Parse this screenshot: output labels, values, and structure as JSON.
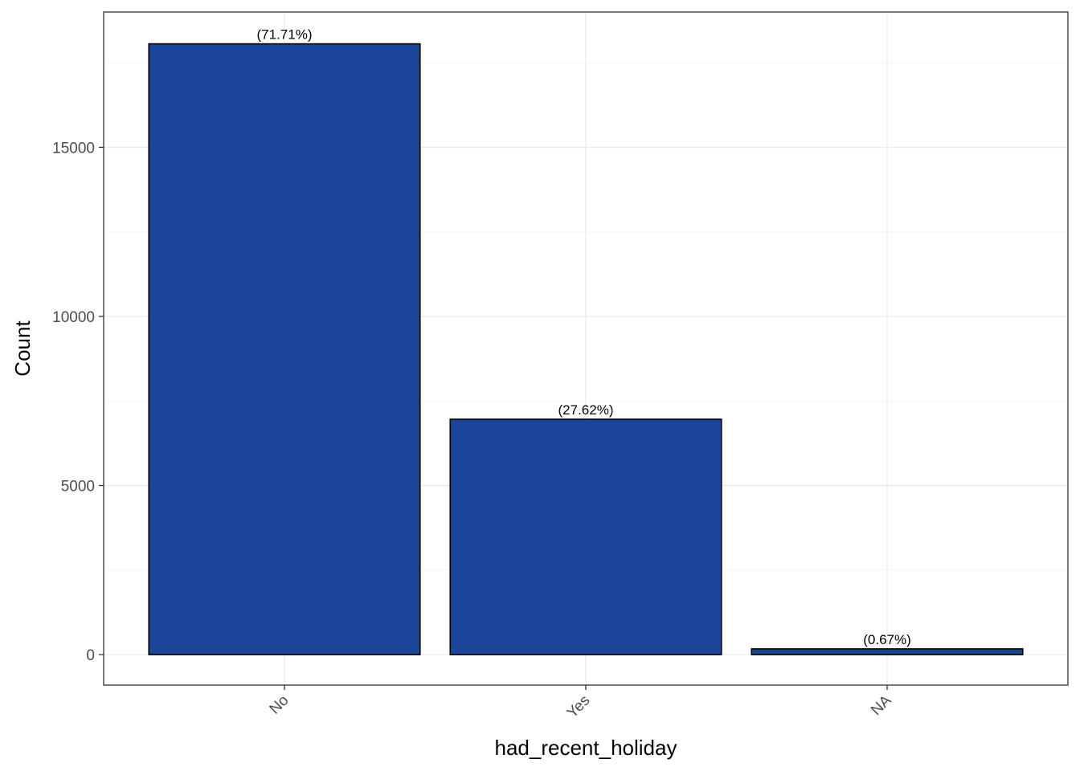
{
  "chart_data": {
    "type": "bar",
    "categories": [
      "No",
      "Yes",
      "NA"
    ],
    "values": [
      18060,
      6960,
      170
    ],
    "data_labels": [
      "(71.71%)",
      "(27.62%)",
      "(0.67%)"
    ],
    "title": "",
    "xlabel": "had_recent_holiday",
    "ylabel": "Count",
    "ylim": [
      -900,
      19000
    ],
    "y_ticks": [
      0,
      5000,
      10000,
      15000
    ],
    "y_tick_labels": [
      "0",
      "5000",
      "10000",
      "15000"
    ],
    "bar_color": "#1a4599",
    "bar_outline_color": "#000000",
    "x_tick_rotation_deg": 45,
    "grid": true,
    "legend": "none"
  }
}
